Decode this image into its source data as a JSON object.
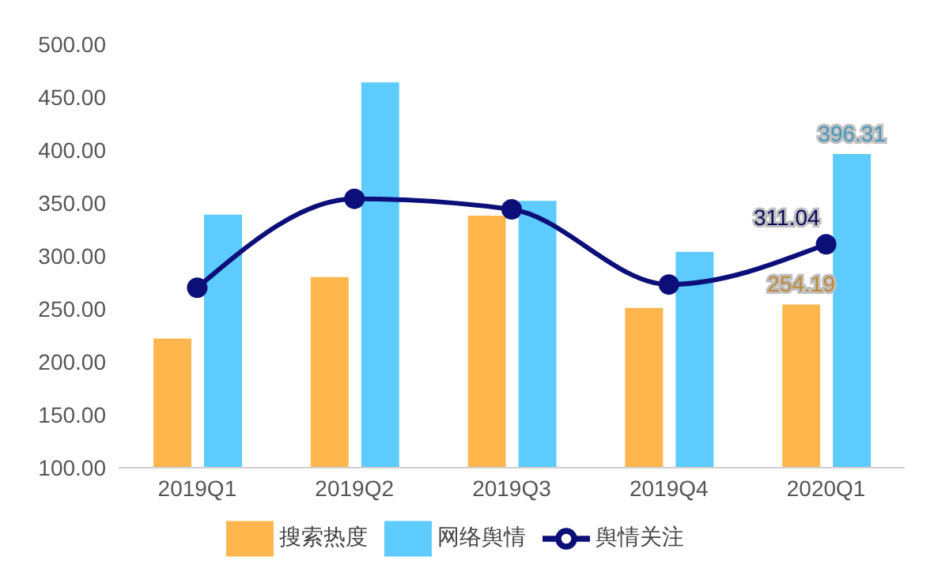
{
  "chart_data": {
    "type": "bar",
    "categories": [
      "2019Q1",
      "2019Q2",
      "2019Q3",
      "2019Q4",
      "2020Q1"
    ],
    "series": [
      {
        "name": "搜索热度",
        "color": "#ffb74d",
        "values": [
          222,
          280,
          338,
          251,
          254.19
        ],
        "value_labels": [
          null,
          null,
          null,
          null,
          "254.19"
        ]
      },
      {
        "name": "网络舆情",
        "color": "#5ecbff",
        "values": [
          339,
          464,
          352,
          304,
          396.31
        ],
        "value_labels": [
          null,
          null,
          null,
          null,
          "396.31"
        ]
      },
      {
        "name": "舆情关注",
        "type": "line",
        "color": "#0d0f78",
        "values": [
          270,
          354,
          344,
          273,
          311.04
        ],
        "value_labels": [
          null,
          null,
          null,
          null,
          "311.04"
        ],
        "marker": "circle"
      }
    ],
    "ylim": [
      100,
      500
    ],
    "yticks": [
      {
        "value": 100,
        "label": "100.00"
      },
      {
        "value": 150,
        "label": "150.00"
      },
      {
        "value": 200,
        "label": "200.00"
      },
      {
        "value": 250,
        "label": "250.00"
      },
      {
        "value": 300,
        "label": "300.00"
      },
      {
        "value": 350,
        "label": "350.00"
      },
      {
        "value": 400,
        "label": "400.00"
      },
      {
        "value": 450,
        "label": "450.00"
      },
      {
        "value": 500,
        "label": "500.00"
      }
    ],
    "grid": false,
    "legend": "bottom"
  }
}
